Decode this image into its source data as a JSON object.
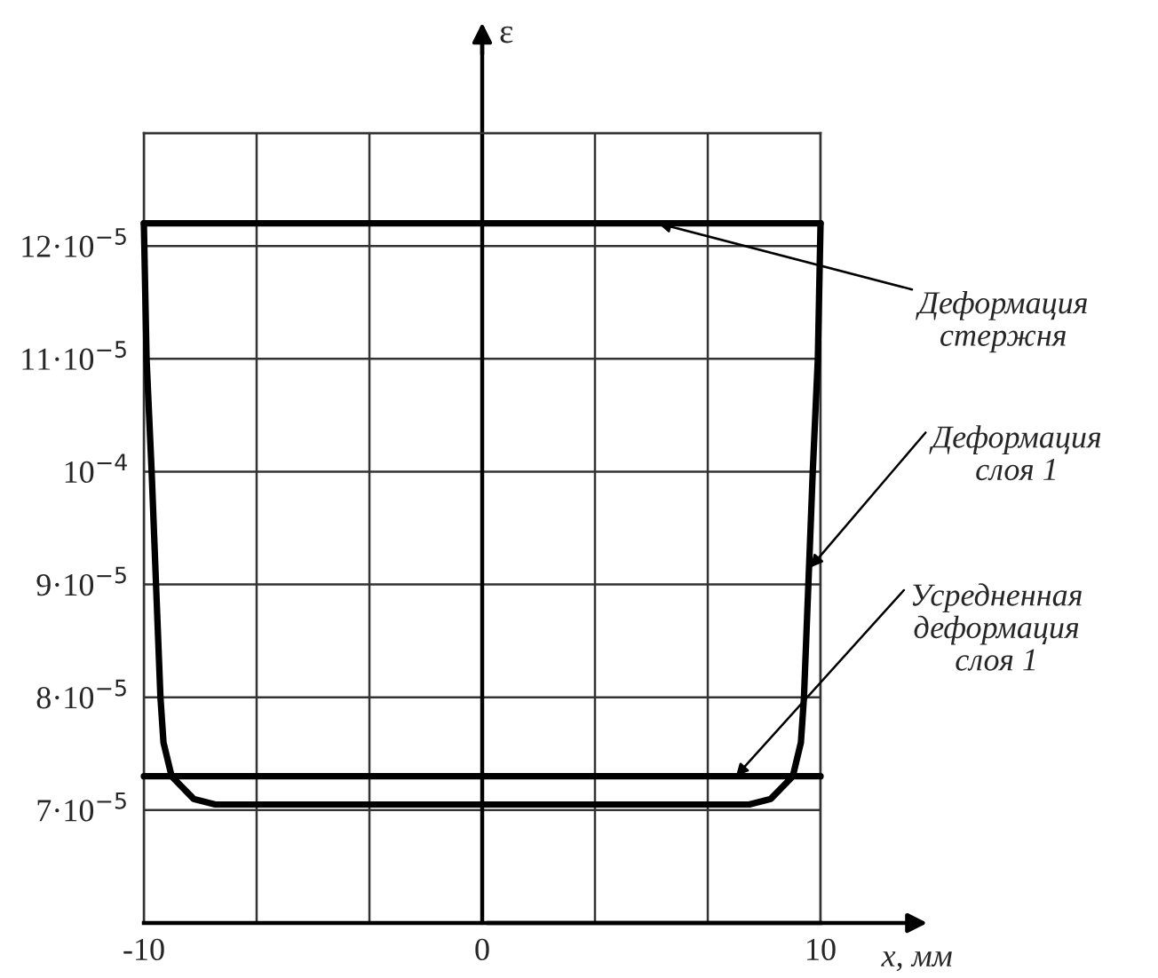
{
  "chart_data": {
    "type": "line",
    "xlabel": "x, мм",
    "ylabel": "ε",
    "xlim": [
      -10,
      10
    ],
    "ylim": [
      6e-05,
      0.00013
    ],
    "xticks": [
      -10,
      {
        "value": -6.667,
        "label": null
      },
      {
        "value": -3.333,
        "label": null
      },
      0,
      {
        "value": 3.333,
        "label": null
      },
      {
        "value": 6.667,
        "label": null
      },
      10
    ],
    "yticks": [
      {
        "value": 6e-05,
        "label": null
      },
      {
        "value": 7e-05,
        "label": "7·10$^{−5}$"
      },
      {
        "value": 8e-05,
        "label": "8·10$^{−5}$"
      },
      {
        "value": 9e-05,
        "label": "9·10$^{−5}$"
      },
      {
        "value": 0.0001,
        "label": "10$^{−4}$"
      },
      {
        "value": 0.00011,
        "label": "11·10$^{−5}$"
      },
      {
        "value": 0.00012,
        "label": "12·10$^{−5}$"
      },
      {
        "value": 0.00013,
        "label": null
      }
    ],
    "grid": true,
    "marker": "none",
    "line_style": "solid",
    "series": [
      {
        "color": "#000000",
        "x": [
          -10,
          10
        ],
        "values": [
          0.000122,
          0.000122
        ]
      },
      {
        "color": "#000000",
        "x": [
          -10,
          -9.92,
          -9.77,
          -9.64,
          -9.51,
          -9.42,
          -9.18,
          -8.53,
          -7.89,
          0,
          7.89,
          8.53,
          9.18,
          9.42,
          9.51,
          9.64,
          9.77,
          9.92,
          10
        ],
        "values": [
          0.000122,
          0.00011,
          0.0001,
          9e-05,
          8e-05,
          7.6e-05,
          7.3e-05,
          7.1e-05,
          7.05e-05,
          7.05e-05,
          7.05e-05,
          7.1e-05,
          7.3e-05,
          7.6e-05,
          8e-05,
          9e-05,
          0.0001,
          0.00011,
          0.000122
        ]
      },
      {
        "color": "#000000",
        "x": [
          -10,
          10
        ],
        "values": [
          7.3e-05,
          7.3e-05
        ]
      }
    ],
    "annotations": [
      {
        "text": "Деформация\nстержня",
        "x": 5.2,
        "y": 0.000122
      },
      {
        "text": "Деформация\nслоя 1",
        "x": 9.7,
        "y": 9.15e-05
      },
      {
        "text": "Усредненная\nдеформация\nслоя 1",
        "x": 7.5,
        "y": 7.3e-05
      }
    ]
  }
}
